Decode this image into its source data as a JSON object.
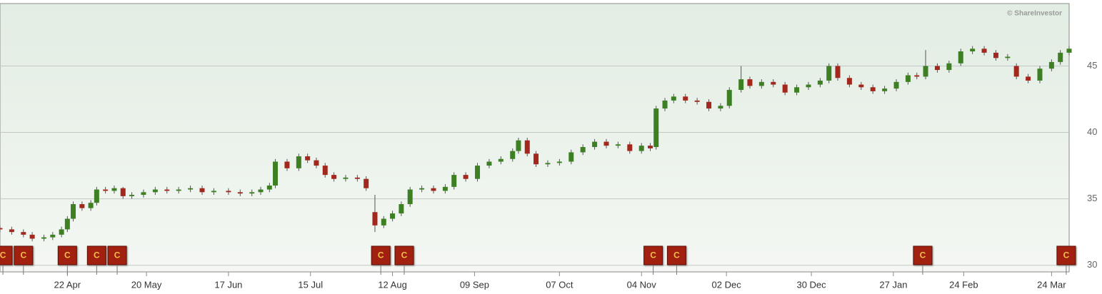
{
  "chart_data": {
    "type": "candlestick",
    "credit": "© ShareInvestor",
    "x": [
      -23,
      -19,
      -15,
      -12,
      -8,
      -5,
      -2,
      0,
      2,
      5,
      8,
      10,
      13,
      16,
      19,
      22,
      26,
      30,
      34,
      38,
      42,
      46,
      50,
      55,
      59,
      63,
      66,
      69,
      71,
      75,
      79,
      82,
      85,
      88,
      91,
      95,
      99,
      102,
      105,
      108,
      111,
      114,
      117,
      121,
      125,
      129,
      132,
      136,
      140,
      144,
      148,
      152,
      154,
      157,
      160,
      164,
      168,
      172,
      176,
      180,
      184,
      188,
      192,
      196,
      199,
      201,
      204,
      207,
      211,
      215,
      219,
      223,
      226,
      230,
      233,
      237,
      241,
      245,
      249,
      253,
      257,
      260,
      263,
      267,
      271,
      275,
      279,
      283,
      287,
      290,
      293,
      297,
      301,
      305,
      309,
      313,
      317,
      321,
      324,
      328,
      332,
      336,
      339,
      342
    ],
    "open": [
      32.8,
      32.7,
      32.5,
      32.3,
      32.0,
      32.1,
      32.3,
      32.7,
      33.5,
      34.6,
      34.3,
      34.7,
      35.7,
      35.6,
      35.8,
      35.2,
      35.3,
      35.5,
      35.7,
      35.6,
      35.7,
      35.8,
      35.5,
      35.6,
      35.5,
      35.4,
      35.5,
      35.7,
      36.0,
      37.8,
      37.3,
      38.2,
      37.9,
      37.5,
      36.8,
      36.5,
      36.6,
      36.5,
      34.0,
      33.0,
      33.5,
      33.9,
      34.6,
      35.7,
      35.8,
      35.6,
      35.9,
      36.8,
      36.5,
      37.5,
      37.8,
      38.0,
      38.6,
      39.4,
      38.4,
      37.6,
      37.7,
      37.8,
      38.5,
      38.9,
      39.3,
      39.0,
      39.1,
      38.6,
      39.0,
      38.9,
      41.8,
      42.4,
      42.7,
      42.4,
      42.3,
      41.8,
      42.0,
      43.2,
      44.0,
      43.5,
      43.8,
      43.6,
      43.0,
      43.4,
      43.6,
      43.9,
      45.0,
      44.1,
      43.6,
      43.4,
      43.1,
      43.3,
      43.8,
      44.3,
      44.2,
      45.0,
      44.7,
      45.2,
      46.1,
      46.3,
      46.0,
      45.6,
      45.0,
      44.2,
      43.9,
      44.8,
      45.3,
      46.0
    ],
    "high": [
      33.0,
      32.9,
      32.7,
      32.5,
      32.3,
      32.5,
      32.9,
      33.7,
      34.8,
      34.8,
      34.9,
      35.9,
      35.9,
      36.0,
      35.9,
      35.5,
      35.7,
      35.9,
      35.9,
      35.9,
      36.0,
      36.0,
      35.8,
      35.8,
      35.7,
      35.7,
      35.9,
      36.2,
      38.0,
      38.0,
      38.4,
      38.4,
      38.1,
      37.7,
      37.0,
      36.8,
      36.8,
      36.7,
      35.3,
      33.7,
      34.1,
      34.8,
      35.9,
      36.0,
      36.0,
      36.1,
      37.0,
      37.0,
      37.7,
      38.0,
      38.2,
      38.8,
      39.6,
      39.6,
      38.6,
      37.9,
      38.0,
      38.7,
      39.1,
      39.5,
      39.5,
      39.3,
      39.3,
      39.2,
      39.2,
      42.0,
      42.6,
      42.9,
      42.9,
      42.6,
      42.5,
      42.2,
      43.4,
      45.0,
      44.2,
      44.0,
      44.0,
      43.8,
      43.6,
      43.8,
      44.1,
      45.2,
      45.2,
      44.3,
      43.8,
      43.6,
      43.5,
      44.0,
      44.5,
      44.5,
      46.2,
      45.2,
      45.4,
      46.3,
      46.5,
      46.5,
      46.2,
      45.9,
      45.2,
      44.4,
      45.0,
      45.5,
      46.2,
      46.5
    ],
    "low": [
      32.5,
      32.3,
      32.1,
      31.8,
      31.8,
      31.9,
      32.1,
      32.5,
      33.3,
      34.1,
      34.1,
      34.5,
      35.4,
      35.4,
      35.0,
      35.0,
      35.1,
      35.3,
      35.4,
      35.4,
      35.5,
      35.3,
      35.3,
      35.3,
      35.2,
      35.2,
      35.3,
      35.5,
      35.8,
      37.1,
      37.1,
      37.7,
      37.3,
      36.6,
      36.3,
      36.3,
      36.3,
      35.6,
      32.5,
      32.8,
      33.3,
      33.7,
      34.4,
      35.5,
      35.4,
      35.4,
      35.7,
      36.3,
      36.3,
      37.3,
      37.6,
      37.8,
      38.4,
      38.2,
      37.4,
      37.4,
      37.5,
      37.6,
      38.3,
      38.7,
      38.8,
      38.8,
      38.4,
      38.4,
      38.6,
      38.7,
      41.6,
      42.2,
      42.2,
      42.1,
      41.6,
      41.6,
      41.8,
      43.0,
      43.3,
      43.3,
      43.4,
      42.8,
      42.8,
      43.2,
      43.4,
      43.7,
      43.9,
      43.4,
      43.2,
      42.9,
      42.9,
      43.1,
      43.6,
      44.0,
      44.0,
      44.5,
      44.5,
      45.0,
      45.9,
      45.8,
      45.4,
      45.4,
      44.0,
      43.7,
      43.7,
      44.6,
      45.1,
      45.8
    ],
    "close": [
      32.7,
      32.5,
      32.3,
      32.0,
      32.1,
      32.3,
      32.7,
      33.5,
      34.6,
      34.3,
      34.7,
      35.7,
      35.6,
      35.8,
      35.2,
      35.3,
      35.5,
      35.7,
      35.6,
      35.7,
      35.8,
      35.5,
      35.6,
      35.5,
      35.4,
      35.5,
      35.7,
      36.0,
      37.8,
      37.3,
      38.2,
      37.9,
      37.5,
      36.8,
      36.5,
      36.6,
      36.5,
      35.8,
      33.0,
      33.5,
      33.9,
      34.6,
      35.7,
      35.8,
      35.6,
      35.9,
      36.8,
      36.5,
      37.5,
      37.8,
      38.0,
      38.6,
      39.4,
      38.4,
      37.6,
      37.7,
      37.8,
      38.5,
      38.9,
      39.3,
      39.0,
      39.1,
      38.6,
      39.0,
      38.8,
      41.8,
      42.4,
      42.7,
      42.4,
      42.3,
      41.8,
      42.0,
      43.2,
      44.0,
      43.5,
      43.8,
      43.6,
      43.0,
      43.4,
      43.6,
      43.9,
      45.0,
      44.1,
      43.6,
      43.4,
      43.1,
      43.3,
      43.8,
      44.3,
      44.2,
      45.0,
      44.7,
      45.2,
      46.1,
      46.3,
      46.0,
      45.6,
      45.7,
      44.2,
      43.9,
      44.8,
      45.3,
      46.0,
      46.3
    ],
    "up_color": "#3d7f23",
    "down_color": "#a3271d",
    "events": [
      {
        "x": -22,
        "label": "C"
      },
      {
        "x": -15,
        "label": "C"
      },
      {
        "x": 0,
        "label": "C"
      },
      {
        "x": 10,
        "label": "C"
      },
      {
        "x": 17,
        "label": "C"
      },
      {
        "x": 107,
        "label": "C"
      },
      {
        "x": 115,
        "label": "C"
      },
      {
        "x": 200,
        "label": "C"
      },
      {
        "x": 208,
        "label": "C"
      },
      {
        "x": 292,
        "label": "C"
      },
      {
        "x": 341,
        "label": "C"
      }
    ],
    "event_color": "#a2200f",
    "xlim": [
      -23,
      342
    ],
    "xticks": [
      {
        "value": 0,
        "label": "22 Apr"
      },
      {
        "value": 27,
        "label": "20 May"
      },
      {
        "value": 55,
        "label": "17 Jun"
      },
      {
        "value": 83,
        "label": "15 Jul"
      },
      {
        "value": 111,
        "label": "12 Aug"
      },
      {
        "value": 139,
        "label": "09 Sep"
      },
      {
        "value": 168,
        "label": "07 Oct"
      },
      {
        "value": 196,
        "label": "04 Nov"
      },
      {
        "value": 225,
        "label": "02 Dec"
      },
      {
        "value": 254,
        "label": "30 Dec"
      },
      {
        "value": 282,
        "label": "27 Jan"
      },
      {
        "value": 306,
        "label": "24 Feb"
      },
      {
        "value": 336,
        "label": "24 Mar"
      }
    ],
    "ylim": [
      29.5,
      49.7
    ],
    "yticks": [
      30,
      35,
      40,
      45
    ],
    "grid": true
  }
}
